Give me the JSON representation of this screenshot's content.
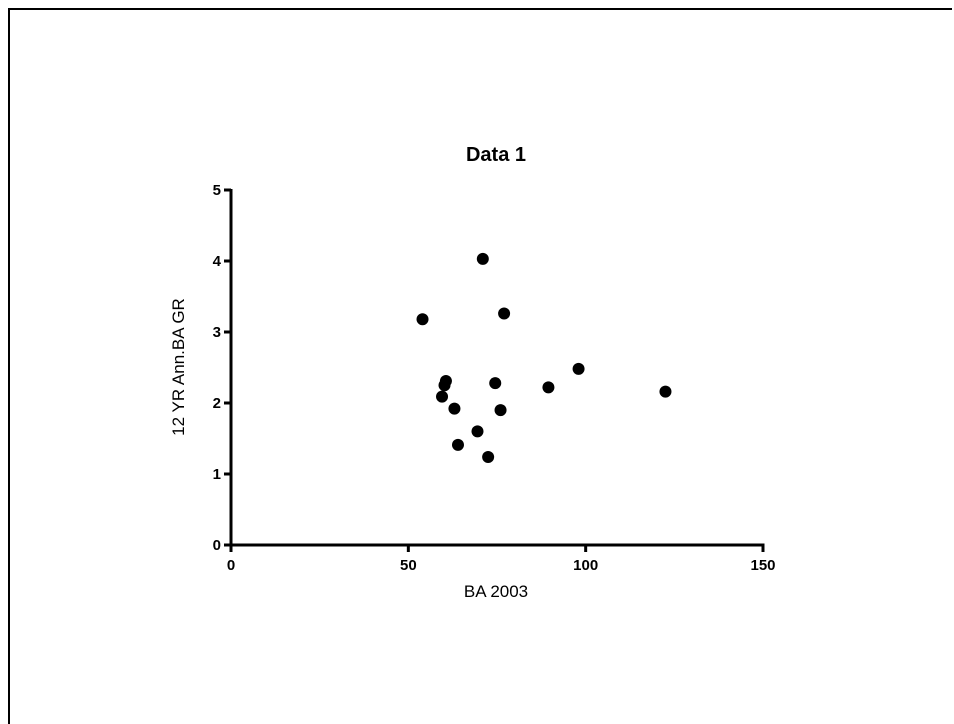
{
  "chart_data": {
    "type": "scatter",
    "title": "Data 1",
    "xlabel": "BA 2003",
    "ylabel": "12 YR Ann.BA GR",
    "xlim": [
      0,
      150
    ],
    "ylim": [
      0,
      5
    ],
    "xticks": [
      0,
      50,
      100,
      150
    ],
    "yticks": [
      0,
      1,
      2,
      3,
      4,
      5
    ],
    "grid": false,
    "marker_color": "#000000",
    "series": [
      {
        "points": [
          {
            "x": 54,
            "y": 3.18
          },
          {
            "x": 59.5,
            "y": 2.09
          },
          {
            "x": 60.2,
            "y": 2.25
          },
          {
            "x": 60.6,
            "y": 2.31
          },
          {
            "x": 63,
            "y": 1.92
          },
          {
            "x": 64,
            "y": 1.41
          },
          {
            "x": 69.5,
            "y": 1.6
          },
          {
            "x": 71,
            "y": 4.03
          },
          {
            "x": 72.5,
            "y": 1.24
          },
          {
            "x": 74.5,
            "y": 2.28
          },
          {
            "x": 76,
            "y": 1.9
          },
          {
            "x": 77,
            "y": 3.26
          },
          {
            "x": 89.5,
            "y": 2.22
          },
          {
            "x": 98,
            "y": 2.48
          },
          {
            "x": 122.5,
            "y": 2.16
          }
        ]
      }
    ]
  }
}
